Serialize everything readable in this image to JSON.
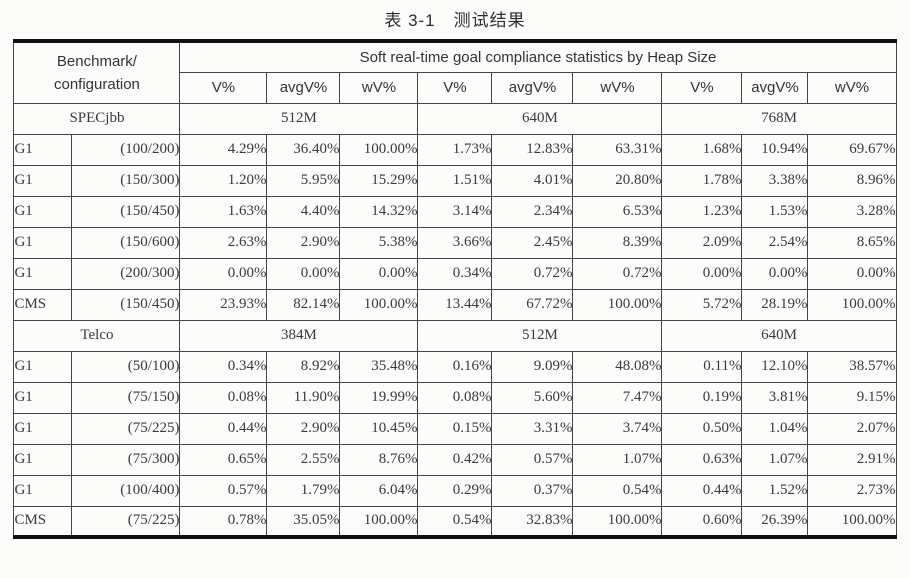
{
  "title": "表 3-1　测试结果",
  "table": {
    "header": {
      "benchmark_line1": "Benchmark/",
      "benchmark_line2": "configuration",
      "span_label": "Soft real-time goal compliance statistics by Heap Size",
      "metric_labels": [
        "V%",
        "avgV%",
        "wV%",
        "V%",
        "avgV%",
        "wV%",
        "V%",
        "avgV%",
        "wV%"
      ]
    },
    "sections": [
      {
        "benchmark": "SPECjbb",
        "heap_sizes": [
          "512M",
          "640M",
          "768M"
        ],
        "rows": [
          {
            "gc": "G1",
            "config": "(100/200)",
            "values": [
              "4.29%",
              "36.40%",
              "100.00%",
              "1.73%",
              "12.83%",
              "63.31%",
              "1.68%",
              "10.94%",
              "69.67%"
            ]
          },
          {
            "gc": "G1",
            "config": "(150/300)",
            "values": [
              "1.20%",
              "5.95%",
              "15.29%",
              "1.51%",
              "4.01%",
              "20.80%",
              "1.78%",
              "3.38%",
              "8.96%"
            ]
          },
          {
            "gc": "G1",
            "config": "(150/450)",
            "values": [
              "1.63%",
              "4.40%",
              "14.32%",
              "3.14%",
              "2.34%",
              "6.53%",
              "1.23%",
              "1.53%",
              "3.28%"
            ]
          },
          {
            "gc": "G1",
            "config": "(150/600)",
            "values": [
              "2.63%",
              "2.90%",
              "5.38%",
              "3.66%",
              "2.45%",
              "8.39%",
              "2.09%",
              "2.54%",
              "8.65%"
            ]
          },
          {
            "gc": "G1",
            "config": "(200/300)",
            "values": [
              "0.00%",
              "0.00%",
              "0.00%",
              "0.34%",
              "0.72%",
              "0.72%",
              "0.00%",
              "0.00%",
              "0.00%"
            ]
          },
          {
            "gc": "CMS",
            "config": "(150/450)",
            "values": [
              "23.93%",
              "82.14%",
              "100.00%",
              "13.44%",
              "67.72%",
              "100.00%",
              "5.72%",
              "28.19%",
              "100.00%"
            ]
          }
        ]
      },
      {
        "benchmark": "Telco",
        "heap_sizes": [
          "384M",
          "512M",
          "640M"
        ],
        "rows": [
          {
            "gc": "G1",
            "config": "(50/100)",
            "values": [
              "0.34%",
              "8.92%",
              "35.48%",
              "0.16%",
              "9.09%",
              "48.08%",
              "0.11%",
              "12.10%",
              "38.57%"
            ]
          },
          {
            "gc": "G1",
            "config": "(75/150)",
            "values": [
              "0.08%",
              "11.90%",
              "19.99%",
              "0.08%",
              "5.60%",
              "7.47%",
              "0.19%",
              "3.81%",
              "9.15%"
            ]
          },
          {
            "gc": "G1",
            "config": "(75/225)",
            "values": [
              "0.44%",
              "2.90%",
              "10.45%",
              "0.15%",
              "3.31%",
              "3.74%",
              "0.50%",
              "1.04%",
              "2.07%"
            ]
          },
          {
            "gc": "G1",
            "config": "(75/300)",
            "values": [
              "0.65%",
              "2.55%",
              "8.76%",
              "0.42%",
              "0.57%",
              "1.07%",
              "0.63%",
              "1.07%",
              "2.91%"
            ]
          },
          {
            "gc": "G1",
            "config": "(100/400)",
            "values": [
              "0.57%",
              "1.79%",
              "6.04%",
              "0.29%",
              "0.37%",
              "0.54%",
              "0.44%",
              "1.52%",
              "2.73%"
            ]
          },
          {
            "gc": "CMS",
            "config": "(75/225)",
            "values": [
              "0.78%",
              "35.05%",
              "100.00%",
              "0.54%",
              "32.83%",
              "100.00%",
              "0.60%",
              "26.39%",
              "100.00%"
            ]
          }
        ]
      }
    ]
  }
}
